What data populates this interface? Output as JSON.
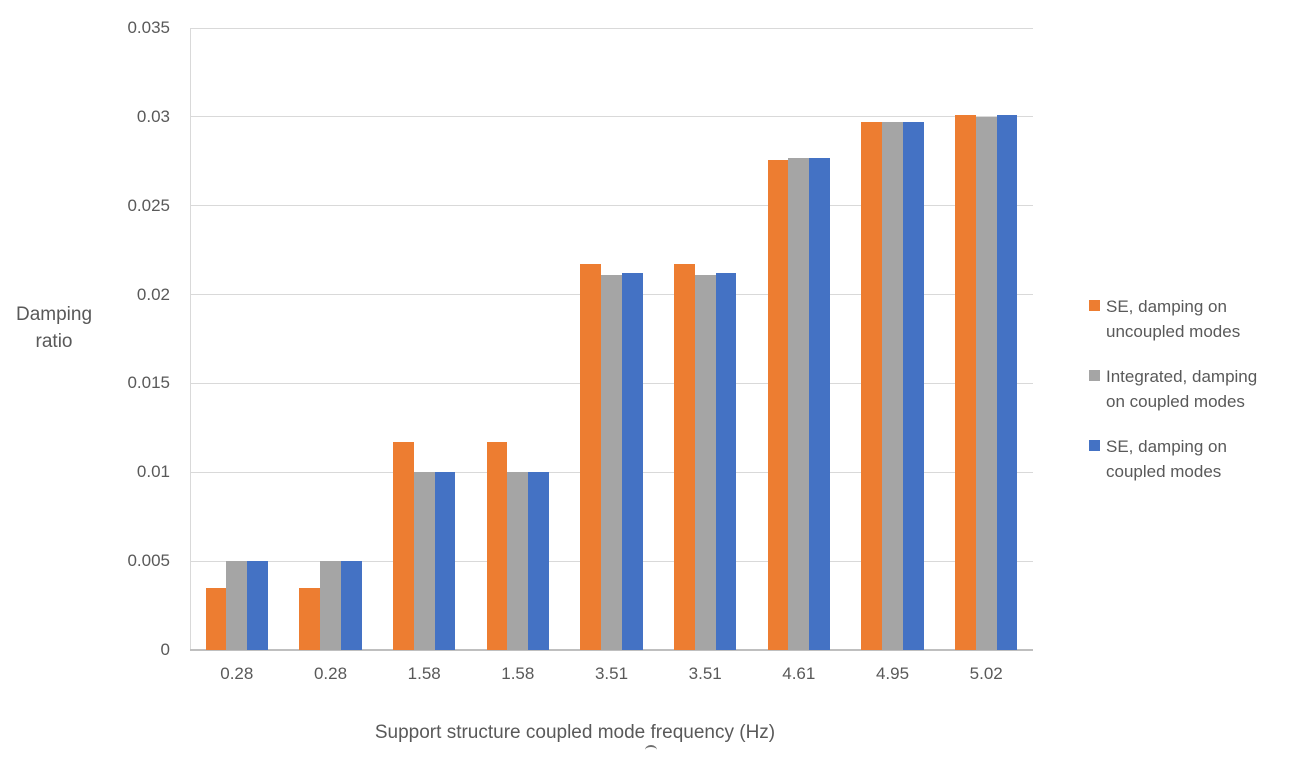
{
  "chart_data": {
    "type": "bar",
    "title": "",
    "xlabel": "Support structure coupled mode frequency (Hz)",
    "ylabel": "Damping ratio",
    "ylabel_lines": [
      "Damping",
      "ratio"
    ],
    "categories": [
      "0.28",
      "0.28",
      "1.58",
      "1.58",
      "3.51",
      "3.51",
      "4.61",
      "4.95",
      "5.02"
    ],
    "series": [
      {
        "name": "SE, damping on uncoupled modes",
        "color": "#ED7D31",
        "values": [
          0.0035,
          0.0035,
          0.0117,
          0.0117,
          0.0217,
          0.0217,
          0.0276,
          0.0297,
          0.0301
        ]
      },
      {
        "name": "Integrated, damping on coupled modes",
        "color": "#A5A5A5",
        "values": [
          0.005,
          0.005,
          0.01,
          0.01,
          0.0211,
          0.0211,
          0.0277,
          0.0297,
          0.03
        ]
      },
      {
        "name": "SE, damping on coupled modes",
        "color": "#4472C4",
        "values": [
          0.005,
          0.005,
          0.01,
          0.01,
          0.0212,
          0.0212,
          0.0277,
          0.0297,
          0.0301
        ]
      }
    ],
    "ylim": [
      0,
      0.035
    ],
    "ytick_step": 0.005,
    "ytick_labels": [
      "0",
      "0.005",
      "0.01",
      "0.015",
      "0.02",
      "0.025",
      "0.03",
      "0.035"
    ],
    "grid": true,
    "legend_position": "right-middle"
  },
  "legend": {
    "items": [
      {
        "lines": [
          "SE, damping on",
          "uncoupled modes"
        ],
        "color": "#ED7D31"
      },
      {
        "lines": [
          "Integrated, damping",
          "on coupled modes"
        ],
        "color": "#A5A5A5"
      },
      {
        "lines": [
          "SE, damping on",
          "coupled modes"
        ],
        "color": "#4472C4"
      }
    ]
  },
  "colors": {
    "gridline": "#D9D9D9",
    "axis_line": "#BFBFBF",
    "text": "#595959",
    "background": "#FFFFFF"
  }
}
